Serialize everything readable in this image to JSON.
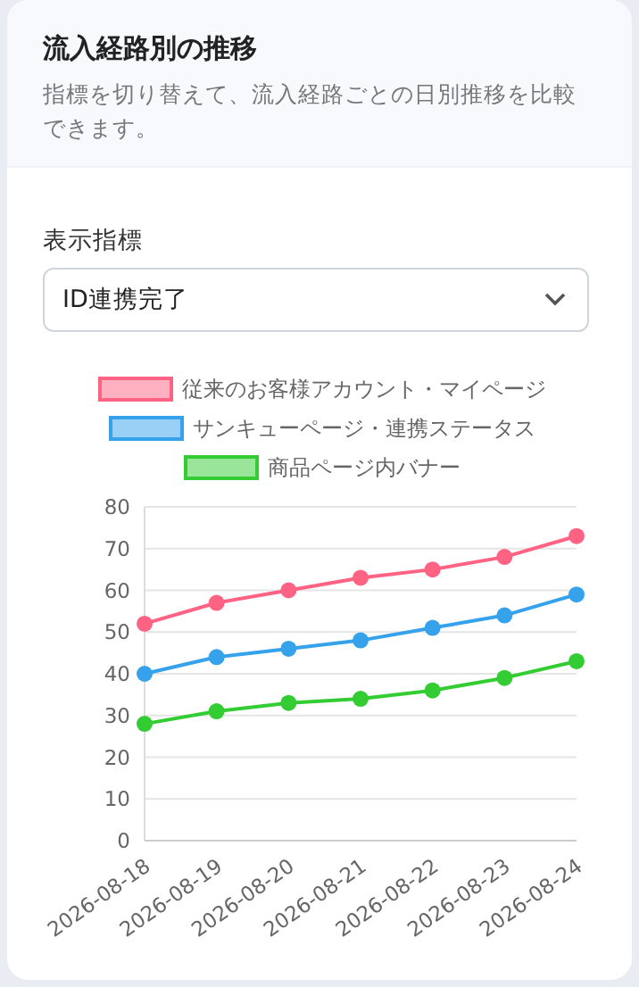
{
  "chart_data": {
    "type": "line",
    "title": "流入経路別の推移",
    "subtitle": "指標を切り替えて、流入経路ごとの日別推移を比較できます。",
    "annotations": [
      "表示指標",
      "ID連携完了"
    ],
    "categories": [
      "2026-08-18",
      "2026-08-19",
      "2026-08-20",
      "2026-08-21",
      "2026-08-22",
      "2026-08-23",
      "2026-08-24"
    ],
    "series": [
      {
        "name": "従来のお客様アカウント・マイページ",
        "color": "#ff6384",
        "values": [
          52,
          57,
          60,
          63,
          65,
          68,
          73
        ]
      },
      {
        "name": "サンキューページ・連携ステータス",
        "color": "#36a2eb",
        "values": [
          40,
          44,
          46,
          48,
          51,
          54,
          59
        ]
      },
      {
        "name": "商品ページ内バナー",
        "color": "#33cc33",
        "values": [
          28,
          31,
          33,
          34,
          36,
          39,
          43
        ]
      }
    ],
    "ylim": [
      0,
      80
    ],
    "yticks": [
      0,
      10,
      20,
      30,
      40,
      50,
      60,
      70,
      80
    ],
    "grid": "y",
    "legend": "top",
    "marker": "circle",
    "line_style": "solid"
  }
}
